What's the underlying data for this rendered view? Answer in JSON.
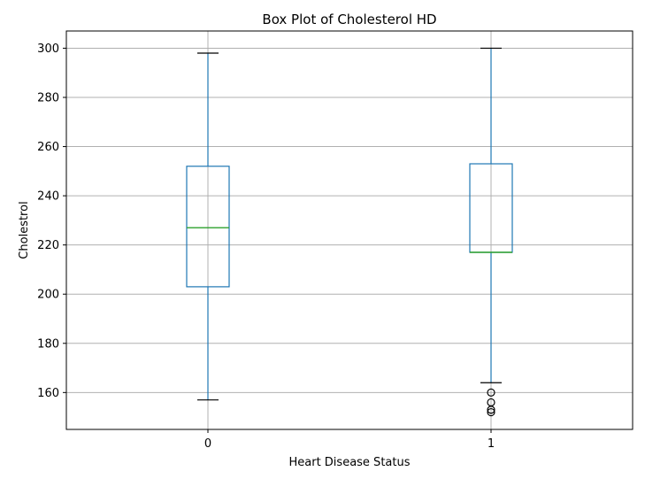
{
  "chart_data": {
    "type": "box",
    "title": "Box Plot of Cholesterol HD",
    "xlabel": "Heart Disease Status",
    "ylabel": "Cholestrol",
    "ylim": [
      145,
      307
    ],
    "yticks": [
      160,
      180,
      200,
      220,
      240,
      260,
      280,
      300
    ],
    "grid": true,
    "categories": [
      "0",
      "1"
    ],
    "boxes": [
      {
        "category": "0",
        "whisker_low": 157,
        "q1": 203,
        "median": 227,
        "q3": 252,
        "whisker_high": 298,
        "fliers": []
      },
      {
        "category": "1",
        "whisker_low": 164,
        "q1": 217,
        "median": 217,
        "q3": 253,
        "whisker_high": 300,
        "fliers": [
          160,
          156,
          153,
          152
        ]
      }
    ]
  }
}
